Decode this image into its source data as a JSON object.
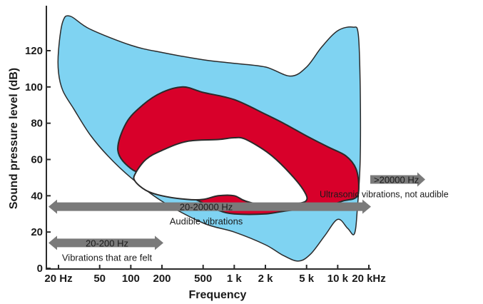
{
  "chart_data": {
    "type": "area",
    "xlabel": "Frequency",
    "ylabel": "Sound pressure level (dB)",
    "x_scale": "log",
    "xlim": [
      20,
      20000
    ],
    "ylim": [
      0,
      140
    ],
    "x_ticks": [
      {
        "value": 20,
        "label": "20 Hz"
      },
      {
        "value": 50,
        "label": "50"
      },
      {
        "value": 100,
        "label": "100"
      },
      {
        "value": 200,
        "label": "200"
      },
      {
        "value": 500,
        "label": "500"
      },
      {
        "value": 1000,
        "label": "1 k"
      },
      {
        "value": 2000,
        "label": "2 k"
      },
      {
        "value": 5000,
        "label": "5 k"
      },
      {
        "value": 10000,
        "label": "10 k"
      },
      {
        "value": 20000,
        "label": "20 kHz"
      }
    ],
    "y_ticks": [
      0,
      20,
      40,
      60,
      80,
      100,
      120
    ],
    "colors": {
      "hearing_area": "#7fd3f2",
      "speech_area": "#d8002a",
      "inner_area": "#ffffff",
      "arrow": "#7a7a7a",
      "outline": "#2a2a2a"
    },
    "regions": [
      {
        "id": "hearing-area",
        "color": "#7fd3f2",
        "outline": [
          [
            20,
            120
          ],
          [
            22,
            136
          ],
          [
            26,
            139
          ],
          [
            40,
            132
          ],
          [
            100,
            123
          ],
          [
            200,
            119
          ],
          [
            500,
            115
          ],
          [
            1000,
            113
          ],
          [
            2000,
            111
          ],
          [
            3500,
            106
          ],
          [
            5000,
            111
          ],
          [
            7000,
            122
          ],
          [
            10000,
            131
          ],
          [
            14000,
            133
          ],
          [
            15800,
            129
          ],
          [
            16500,
            100
          ],
          [
            16500,
            60
          ],
          [
            15500,
            33
          ],
          [
            14500,
            19
          ],
          [
            12500,
            22
          ],
          [
            10000,
            27
          ],
          [
            7500,
            18
          ],
          [
            5500,
            8
          ],
          [
            4200,
            4
          ],
          [
            3000,
            7
          ],
          [
            2000,
            13
          ],
          [
            1000,
            20
          ],
          [
            500,
            25
          ],
          [
            200,
            37
          ],
          [
            100,
            50
          ],
          [
            60,
            62
          ],
          [
            40,
            74
          ],
          [
            28,
            88
          ],
          [
            22,
            98
          ],
          [
            20,
            108
          ]
        ]
      },
      {
        "id": "speech-area",
        "color": "#d8002a",
        "outline": [
          [
            75,
            65
          ],
          [
            90,
            80
          ],
          [
            130,
            90
          ],
          [
            200,
            97
          ],
          [
            320,
            100
          ],
          [
            500,
            97
          ],
          [
            1000,
            93
          ],
          [
            2000,
            85
          ],
          [
            3000,
            80
          ],
          [
            5000,
            73
          ],
          [
            8000,
            67
          ],
          [
            12000,
            62
          ],
          [
            15000,
            55
          ],
          [
            16000,
            45
          ],
          [
            15000,
            39
          ],
          [
            11000,
            37
          ],
          [
            7000,
            33
          ],
          [
            3500,
            32
          ],
          [
            2000,
            30
          ],
          [
            1000,
            30
          ],
          [
            700,
            32
          ],
          [
            500,
            36
          ],
          [
            300,
            42
          ],
          [
            160,
            50
          ],
          [
            100,
            55
          ]
        ]
      },
      {
        "id": "inner-area",
        "color": "#ffffff",
        "outline": [
          [
            110,
            52
          ],
          [
            140,
            60
          ],
          [
            200,
            65
          ],
          [
            350,
            70
          ],
          [
            700,
            71
          ],
          [
            1000,
            72
          ],
          [
            1300,
            71
          ],
          [
            2200,
            63
          ],
          [
            3500,
            52
          ],
          [
            4800,
            42
          ],
          [
            4900,
            37
          ],
          [
            3500,
            35
          ],
          [
            2500,
            33
          ],
          [
            1300,
            37
          ],
          [
            1000,
            40
          ],
          [
            700,
            40
          ],
          [
            500,
            38
          ],
          [
            350,
            38
          ],
          [
            200,
            40
          ],
          [
            140,
            43
          ],
          [
            110,
            48
          ]
        ]
      }
    ],
    "ranges": [
      {
        "label": "20-20000 Hz",
        "caption": "Audible vibrations",
        "x_start": 20,
        "x_end": 20000,
        "y": 34
      },
      {
        "label": "20-200 Hz",
        "caption": "Vibrations that are felt",
        "x_start": 20,
        "x_end": 200,
        "y": 14
      },
      {
        "label": ">20000 Hz",
        "caption": "Ultrasonic vibrations, not audible",
        "x_start": 20000,
        "x_end": 55000,
        "y": 49
      }
    ]
  }
}
